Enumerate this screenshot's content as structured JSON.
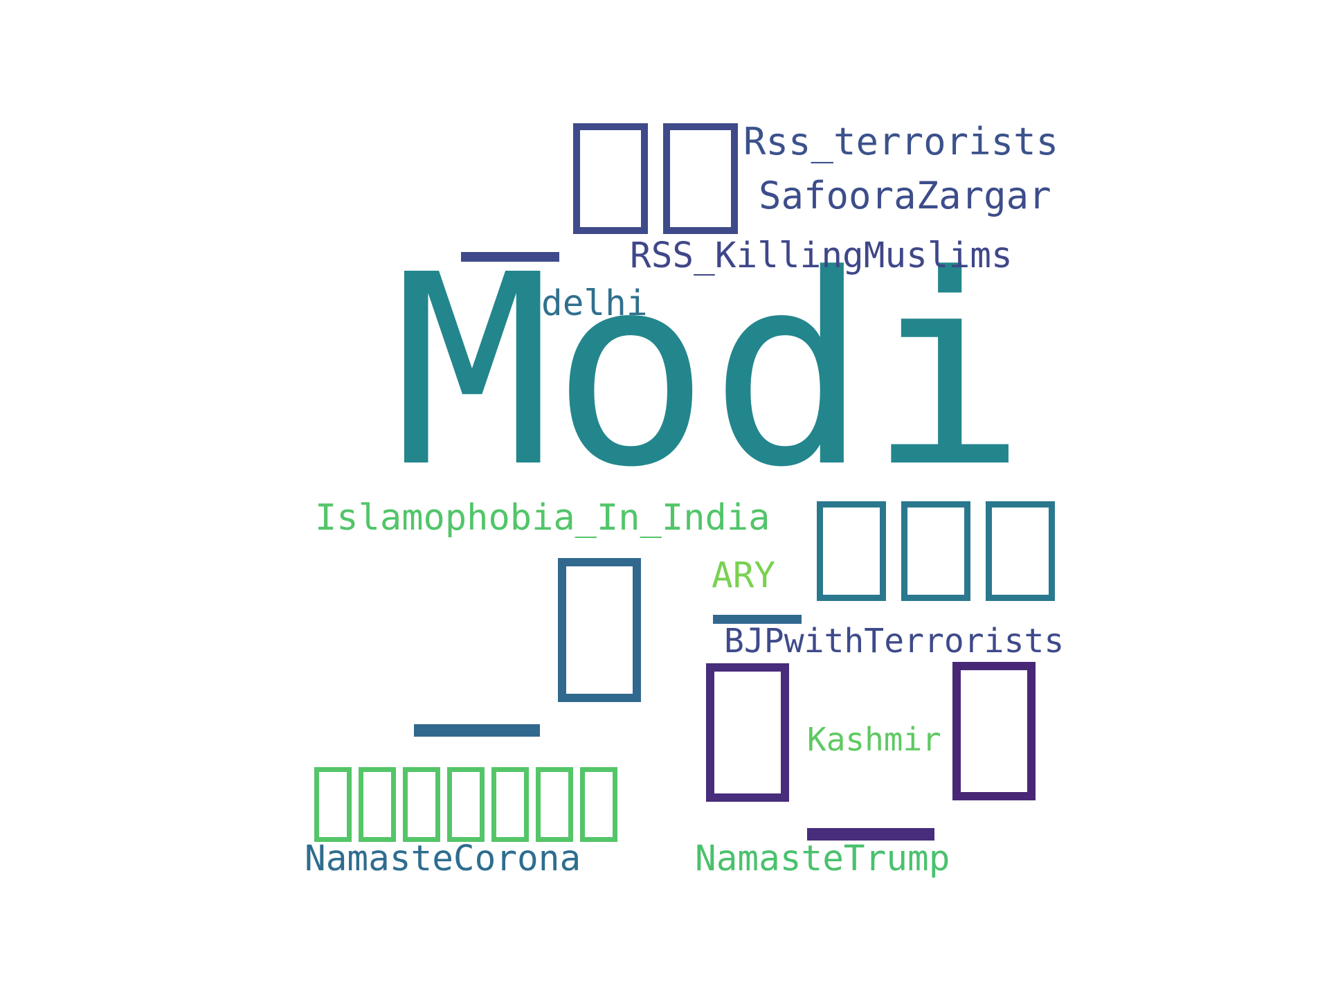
{
  "word_cloud": {
    "words": [
      {
        "key": "modi",
        "text": "Modi",
        "color": "#23868c"
      },
      {
        "key": "rss_terrorists",
        "text": "Rss_terrorists",
        "color": "#3b528b"
      },
      {
        "key": "safoorazargar",
        "text": "SafooraZargar",
        "color": "#3d4d8a"
      },
      {
        "key": "rss_killingmuslims",
        "text": "RSS_KillingMuslims",
        "color": "#3f4788"
      },
      {
        "key": "delhi",
        "text": "delhi",
        "color": "#30708e"
      },
      {
        "key": "islamophobia_in_india",
        "text": "Islamophobia_In_India",
        "color": "#52c569"
      },
      {
        "key": "ary",
        "text": "ARY",
        "color": "#7ad151"
      },
      {
        "key": "bjpwithterrorists",
        "text": "BJPwithTerrorists",
        "color": "#3e4a89"
      },
      {
        "key": "kashmir",
        "text": "Kashmir",
        "color": "#5ec962"
      },
      {
        "key": "namastecorona",
        "text": "NamasteCorona",
        "color": "#2e6d8e"
      },
      {
        "key": "namastetrump",
        "text": "NamasteTrump",
        "color": "#4ac16d"
      }
    ],
    "glyph_groups": [
      {
        "key": "top-boxes",
        "count": 2,
        "color": "#3e4a89"
      },
      {
        "key": "right-boxes",
        "count": 3,
        "color": "#2a788e"
      },
      {
        "key": "center-box",
        "count": 1,
        "color": "#31688e"
      },
      {
        "key": "purple-left-box",
        "count": 1,
        "color": "#472d7b"
      },
      {
        "key": "purple-right-box",
        "count": 1,
        "color": "#482777"
      },
      {
        "key": "bottom-boxes",
        "count": 7,
        "color": "#54c568"
      }
    ],
    "underscore_marks": [
      {
        "key": "bar-top-left",
        "color": "#3e4a89"
      },
      {
        "key": "bar-center",
        "color": "#31688e"
      },
      {
        "key": "bar-left-bottom",
        "color": "#31688e"
      },
      {
        "key": "bar-purple-bottom",
        "color": "#472d7b"
      }
    ]
  }
}
